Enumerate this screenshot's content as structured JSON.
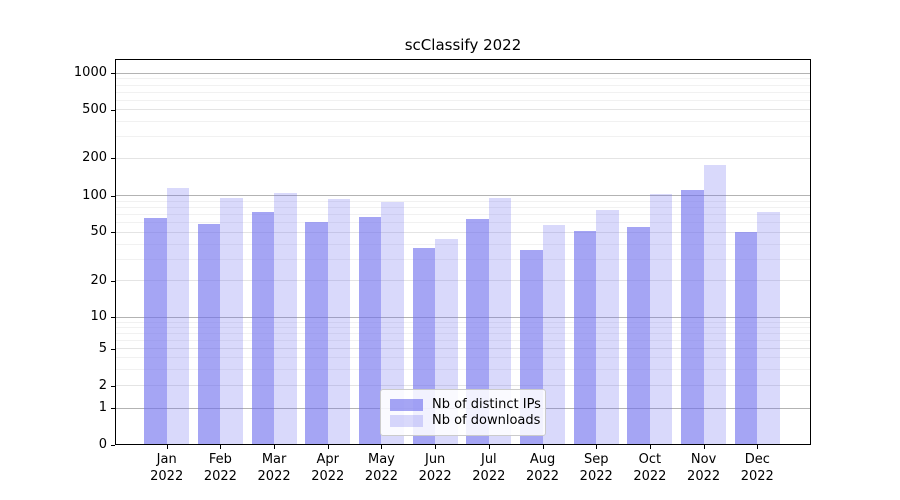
{
  "title": "scClassify 2022",
  "chart_data": {
    "type": "bar",
    "title": "scClassify 2022",
    "categories": [
      "Jan",
      "Feb",
      "Mar",
      "Apr",
      "May",
      "Jun",
      "Jul",
      "Aug",
      "Sep",
      "Oct",
      "Nov",
      "Dec"
    ],
    "category_year": "2022",
    "series": [
      {
        "name": "Nb of distinct IPs",
        "color": "rgba(110,110,238,0.62)",
        "values": [
          66,
          58,
          74,
          61,
          67,
          37,
          64,
          36,
          51,
          55,
          112,
          50
        ]
      },
      {
        "name": "Nb of downloads",
        "color": "rgba(110,110,238,0.26)",
        "values": [
          115,
          96,
          106,
          94,
          89,
          44,
          95,
          57,
          77,
          104,
          177,
          73
        ]
      }
    ],
    "y_axis": {
      "scale": "pseudo-log",
      "tick_labels": [
        "1000",
        "500",
        "200",
        "100",
        "50",
        "20",
        "10",
        "5",
        "2",
        "1",
        "0"
      ],
      "major_ticks": [
        1000,
        500,
        200,
        100,
        50,
        20,
        10,
        5,
        2,
        1,
        0
      ],
      "minor_gridlines": [
        3,
        4,
        6,
        7,
        8,
        9,
        30,
        40,
        60,
        70,
        80,
        90,
        300,
        400,
        600,
        700,
        800,
        900
      ],
      "range": [
        0,
        1000
      ]
    },
    "legend_position": "lower center",
    "grid": true
  },
  "colors": {
    "grid_power10": "#b3b3b3",
    "grid_major": "#e4e4e4",
    "grid_minor": "#f1f1f1",
    "spine": "#000000",
    "text": "#000000",
    "background": "#ffffff"
  }
}
